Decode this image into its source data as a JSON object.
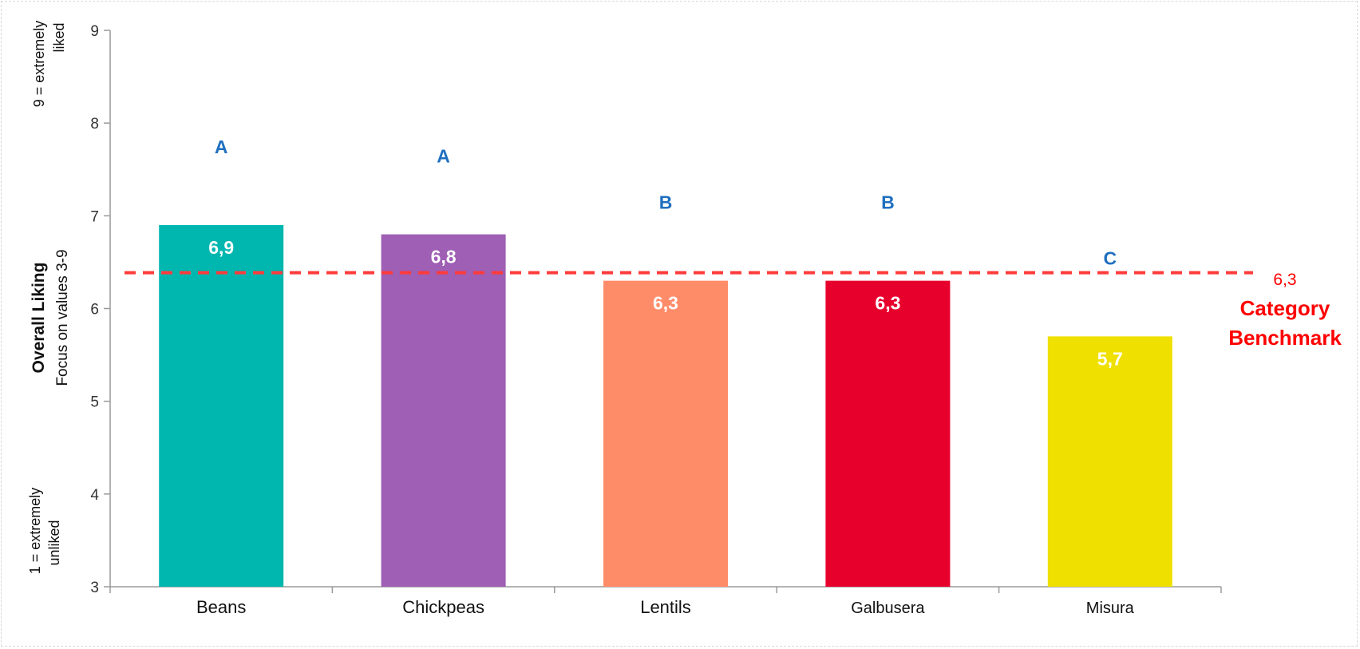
{
  "chart_data": {
    "type": "bar",
    "title": "",
    "xlabel": "",
    "ylabel": "Overall Liking",
    "ylabel_sub": "Focus on values 3-9",
    "y_top_note": [
      "9 = extremely",
      "liked"
    ],
    "y_bottom_note": [
      "1 = extremely",
      "unliked"
    ],
    "ylim": [
      3,
      9
    ],
    "yticks": [
      3,
      4,
      5,
      6,
      7,
      8,
      9
    ],
    "grid": false,
    "categories": [
      "Beans",
      "Chickpeas",
      "Lentils",
      "Galbusera",
      "Misura"
    ],
    "values": [
      6.9,
      6.8,
      6.3,
      6.3,
      5.7
    ],
    "value_labels": [
      "6,9",
      "6,8",
      "6,3",
      "6,3",
      "5,7"
    ],
    "group_letters": [
      "A",
      "A",
      "B",
      "B",
      "C"
    ],
    "colors": [
      "#00b7b0",
      "#9e5fb4",
      "#ff8c69",
      "#e8002d",
      "#efe000"
    ],
    "benchmark": {
      "value": 6.3,
      "value_label": "6,3",
      "label": [
        "Category",
        "Benchmark"
      ],
      "color": "#ff3b3b",
      "style": "dashed"
    }
  }
}
